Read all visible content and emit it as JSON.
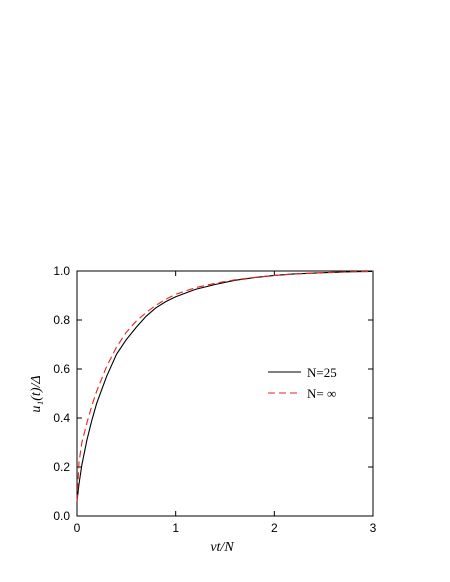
{
  "chart_data": {
    "type": "line",
    "xlabel": "νt/N",
    "ylabel": "u₁(t)/Δ",
    "xlim": [
      0,
      3
    ],
    "ylim": [
      0,
      1.0
    ],
    "xticks": [
      "0",
      "1",
      "2",
      "3"
    ],
    "yticks": [
      "0.0",
      "0.2",
      "0.4",
      "0.6",
      "0.8",
      "1.0"
    ],
    "grid": false,
    "legend_position": "right-middle",
    "series": [
      {
        "name": "N=25",
        "color": "#000000",
        "dash": "solid",
        "x": [
          0,
          0.02,
          0.05,
          0.1,
          0.15,
          0.2,
          0.3,
          0.4,
          0.5,
          0.6,
          0.7,
          0.8,
          0.9,
          1.0,
          1.2,
          1.4,
          1.6,
          1.8,
          2.0,
          2.2,
          2.5,
          2.8,
          3.0
        ],
        "y": [
          0.06,
          0.13,
          0.21,
          0.31,
          0.39,
          0.46,
          0.57,
          0.66,
          0.72,
          0.77,
          0.815,
          0.85,
          0.875,
          0.895,
          0.925,
          0.945,
          0.962,
          0.973,
          0.982,
          0.988,
          0.993,
          0.997,
          0.998
        ]
      },
      {
        "name": "N= ∞",
        "color": "#e8231c",
        "dash": "dashed",
        "x": [
          0,
          0.02,
          0.05,
          0.1,
          0.15,
          0.2,
          0.3,
          0.4,
          0.5,
          0.6,
          0.7,
          0.8,
          0.9,
          1.0,
          1.2,
          1.4,
          1.6,
          1.8,
          2.0,
          2.2,
          2.5,
          2.8,
          3.0
        ],
        "y": [
          0.06,
          0.22,
          0.3,
          0.38,
          0.45,
          0.51,
          0.61,
          0.69,
          0.75,
          0.795,
          0.83,
          0.86,
          0.885,
          0.905,
          0.932,
          0.95,
          0.964,
          0.974,
          0.982,
          0.988,
          0.993,
          0.997,
          0.998
        ]
      }
    ]
  }
}
